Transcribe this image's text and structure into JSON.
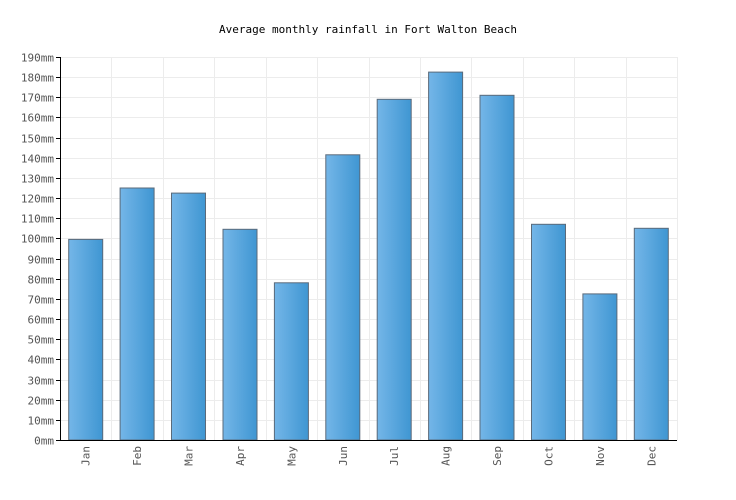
{
  "chart_data": {
    "type": "bar",
    "title": "Average monthly rainfall in Fort Walton Beach",
    "xlabel": "",
    "ylabel": "",
    "categories": [
      "Jan",
      "Feb",
      "Mar",
      "Apr",
      "May",
      "Jun",
      "Jul",
      "Aug",
      "Sep",
      "Oct",
      "Nov",
      "Dec"
    ],
    "values": [
      99.5,
      125,
      122.5,
      104.5,
      78,
      141.5,
      169,
      182.5,
      171,
      107,
      72.5,
      105
    ],
    "y_unit_suffix": "mm",
    "ylim": [
      0,
      190
    ],
    "y_ticks": [
      0,
      10,
      20,
      30,
      40,
      50,
      60,
      70,
      80,
      90,
      100,
      110,
      120,
      130,
      140,
      150,
      160,
      170,
      180,
      190
    ],
    "grid": true,
    "legend": "none",
    "bar_color_light": "#74b6e8",
    "bar_color_dark": "#3f96d2"
  }
}
